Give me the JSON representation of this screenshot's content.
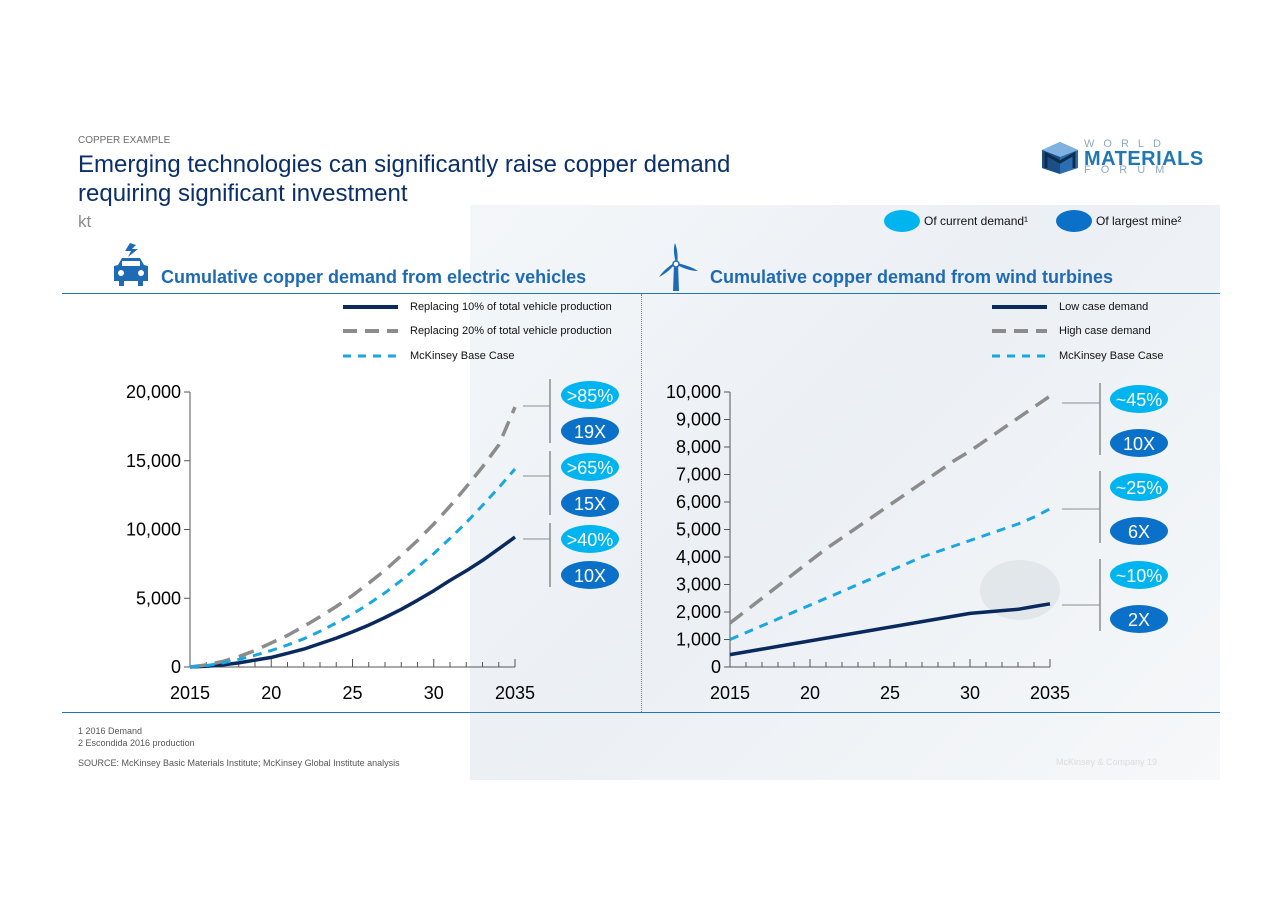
{
  "eyebrow": "COPPER EXAMPLE",
  "title": "Emerging technologies can significantly raise copper demand requiring significant investment",
  "unit": "kt",
  "logo": {
    "line1": "WORLD",
    "line2": "MATERIALS",
    "line3": "FORUM"
  },
  "legend": {
    "current": "Of current demand¹",
    "largest": "Of largest mine²"
  },
  "colors": {
    "light_blue": "#00b5ef",
    "mid_blue": "#0b70c8",
    "navy": "#0a2a5e",
    "grey": "#8c8c8c",
    "title_blue": "#1f6ab5"
  },
  "icons": {
    "left": "electric-car-icon",
    "right": "wind-turbine-icon"
  },
  "chart_data": [
    {
      "type": "line",
      "title": "Cumulative copper demand from electric vehicles",
      "x": [
        2015,
        2016,
        2017,
        2018,
        2019,
        2020,
        2021,
        2022,
        2023,
        2024,
        2025,
        2026,
        2027,
        2028,
        2029,
        2030,
        2031,
        2032,
        2033,
        2034,
        2035
      ],
      "x_tick_labels": [
        "2015",
        "20",
        "25",
        "30",
        "2035"
      ],
      "x_tick_values": [
        2015,
        2020,
        2025,
        2030,
        2035
      ],
      "ylim": [
        0,
        20000
      ],
      "y_ticks": [
        0,
        5000,
        10000,
        15000,
        20000
      ],
      "y_tick_labels": [
        "0",
        "5,000",
        "10,000",
        "15,000",
        "20,000"
      ],
      "series": [
        {
          "name": "Replacing 10% of total vehicle production",
          "style": "solid",
          "color": "#0a2a5e",
          "values": [
            0,
            50,
            150,
            300,
            500,
            700,
            1000,
            1300,
            1700,
            2100,
            2550,
            3050,
            3600,
            4200,
            4850,
            5550,
            6300,
            7000,
            7750,
            8600,
            9450
          ]
        },
        {
          "name": "Replacing 20% of total vehicle production",
          "style": "longdash",
          "color": "#8c8c8c",
          "values": [
            0,
            150,
            400,
            750,
            1200,
            1750,
            2300,
            2950,
            3650,
            4400,
            5200,
            6100,
            7050,
            8100,
            9200,
            10400,
            11700,
            13100,
            14550,
            16150,
            18900
          ]
        },
        {
          "name": "McKinsey Base Case",
          "style": "dash",
          "color": "#1aa6e0",
          "values": [
            0,
            100,
            300,
            550,
            850,
            1200,
            1600,
            2050,
            2600,
            3200,
            3850,
            4600,
            5400,
            6300,
            7250,
            8250,
            9350,
            10500,
            11750,
            13050,
            14400
          ]
        }
      ],
      "annotations": [
        {
          "current": ">85%",
          "largest": "19X"
        },
        {
          "current": ">65%",
          "largest": "15X"
        },
        {
          "current": ">40%",
          "largest": "10X"
        }
      ]
    },
    {
      "type": "line",
      "title": "Cumulative copper demand from wind turbines",
      "x": [
        2015,
        2016,
        2017,
        2018,
        2019,
        2020,
        2021,
        2022,
        2023,
        2024,
        2025,
        2026,
        2027,
        2028,
        2029,
        2030,
        2031,
        2032,
        2033,
        2034,
        2035
      ],
      "x_tick_labels": [
        "2015",
        "20",
        "25",
        "30",
        "2035"
      ],
      "x_tick_values": [
        2015,
        2020,
        2025,
        2030,
        2035
      ],
      "ylim": [
        0,
        10000
      ],
      "y_ticks": [
        0,
        1000,
        2000,
        3000,
        4000,
        5000,
        6000,
        7000,
        8000,
        9000,
        10000
      ],
      "y_tick_labels": [
        "0",
        "1,000",
        "2,000",
        "3,000",
        "4,000",
        "5,000",
        "6,000",
        "7,000",
        "8,000",
        "9,000",
        "10,000"
      ],
      "series": [
        {
          "name": "Low case demand",
          "style": "solid",
          "color": "#0a2a5e",
          "values": [
            450,
            550,
            650,
            750,
            850,
            950,
            1050,
            1150,
            1250,
            1350,
            1450,
            1550,
            1650,
            1750,
            1850,
            1950,
            2000,
            2050,
            2100,
            2200,
            2300
          ]
        },
        {
          "name": "High case demand",
          "style": "longdash",
          "color": "#8c8c8c",
          "values": [
            1600,
            2050,
            2500,
            2950,
            3400,
            3850,
            4300,
            4700,
            5100,
            5500,
            5900,
            6300,
            6700,
            7100,
            7500,
            7850,
            8250,
            8650,
            9050,
            9450,
            9850
          ]
        },
        {
          "name": "McKinsey Base Case",
          "style": "dash",
          "color": "#1aa6e0",
          "values": [
            1000,
            1250,
            1500,
            1750,
            2000,
            2250,
            2500,
            2750,
            3000,
            3250,
            3500,
            3750,
            4000,
            4200,
            4400,
            4600,
            4800,
            5000,
            5200,
            5450,
            5750
          ]
        }
      ],
      "annotations": [
        {
          "current": "~45%",
          "largest": "10X"
        },
        {
          "current": "~25%",
          "largest": "6X"
        },
        {
          "current": "~10%",
          "largest": "2X"
        }
      ]
    }
  ],
  "footnotes": [
    "1 2016 Demand",
    "2 Escondida 2016 production"
  ],
  "source": "SOURCE: McKinsey Basic Materials Institute; McKinsey Global Institute analysis",
  "footer_right": "McKinsey & Company   19"
}
